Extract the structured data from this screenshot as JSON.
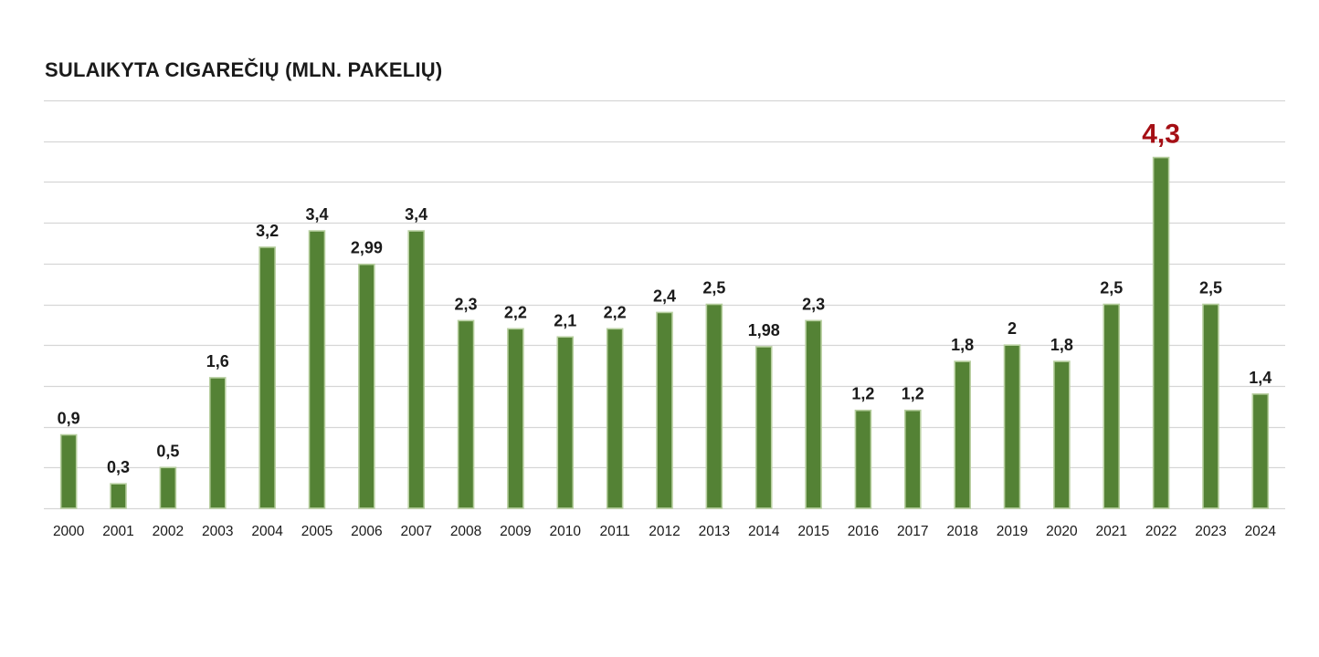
{
  "chart_data": {
    "type": "bar",
    "title": "SULAIKYTA CIGAREČIŲ (MLN. PAKELIŲ)",
    "xlabel": "",
    "ylabel": "",
    "ylim": [
      0,
      5
    ],
    "grid": true,
    "y_axis_labels_shown": false,
    "categories": [
      "2000",
      "2001",
      "2002",
      "2003",
      "2004",
      "2005",
      "2006",
      "2007",
      "2008",
      "2009",
      "2010",
      "2011",
      "2012",
      "2013",
      "2014",
      "2015",
      "2016",
      "2017",
      "2018",
      "2019",
      "2020",
      "2021",
      "2022",
      "2023",
      "2024"
    ],
    "values": [
      0.9,
      0.3,
      0.5,
      1.6,
      3.2,
      3.4,
      2.99,
      3.4,
      2.3,
      2.2,
      2.1,
      2.2,
      2.4,
      2.5,
      1.98,
      2.3,
      1.2,
      1.2,
      1.8,
      2,
      1.8,
      2.5,
      4.3,
      2.5,
      1.4
    ],
    "data_labels": [
      "0,9",
      "0,3",
      "0,5",
      "1,6",
      "3,2",
      "3,4",
      "2,99",
      "3,4",
      "2,3",
      "2,2",
      "2,1",
      "2,2",
      "2,4",
      "2,5",
      "1,98",
      "2,3",
      "1,2",
      "1,2",
      "1,8",
      "2",
      "1,8",
      "2,5",
      "4,3",
      "2,5",
      "1,4"
    ],
    "highlight_category": "2022",
    "bar_color": "#548235",
    "bar_edge_color": "#b7cf9f",
    "highlight_label_color": "#a50f15",
    "grid_color": "#d6d6d6"
  }
}
